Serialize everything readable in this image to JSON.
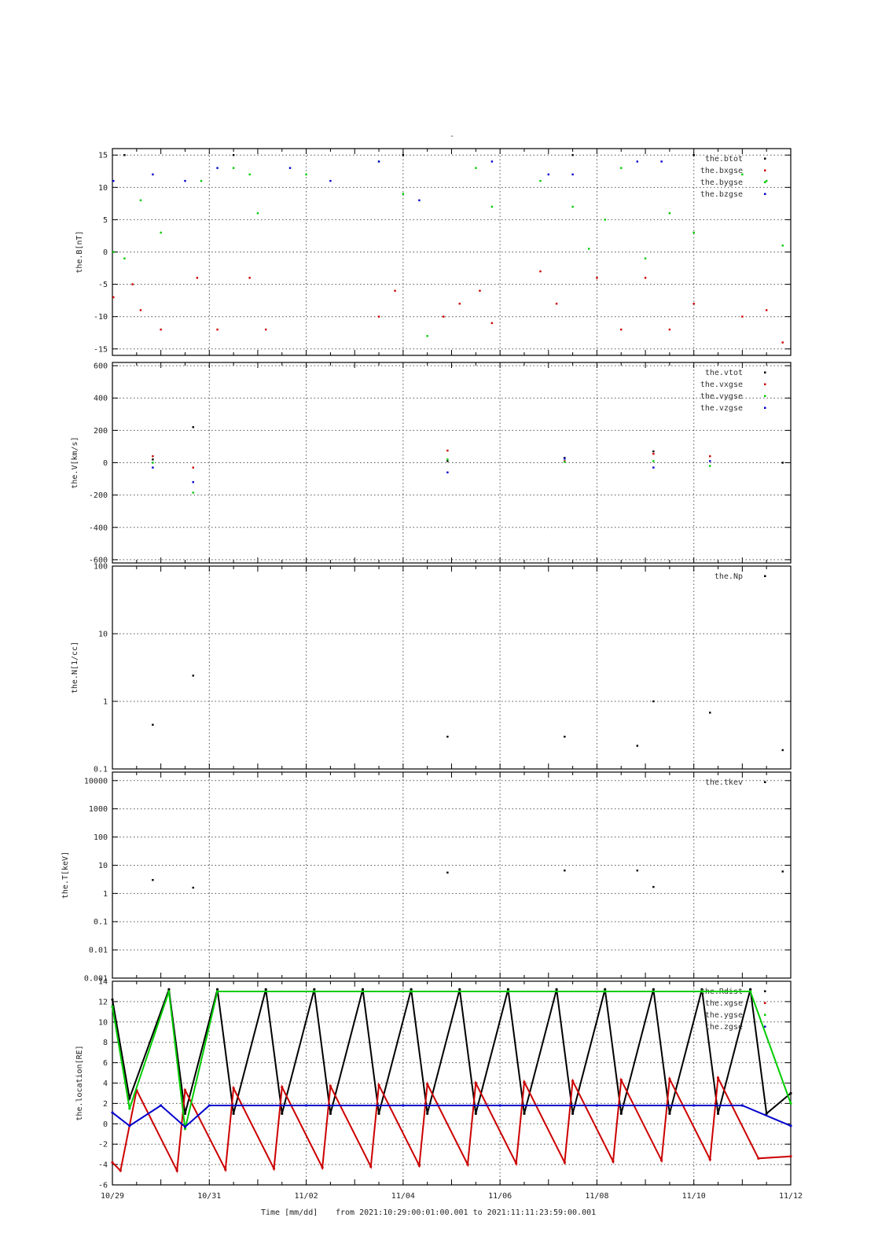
{
  "title": "-",
  "footer": {
    "xlabel": "Time [mm/dd]",
    "range_text": "from 2021:10:29:00:01:00.001  to  2021:11:11:23:59:00.001"
  },
  "x_axis": {
    "start_day": "10/29",
    "end_day": "11/12",
    "tick_labels": [
      "10/29",
      "10/31",
      "11/02",
      "11/04",
      "11/06",
      "11/08",
      "11/10",
      "11/12"
    ]
  },
  "colors": {
    "black": "#000000",
    "red": "#cc0000",
    "green": "#00cc00",
    "blue": "#0000cc",
    "grid": "#555555"
  },
  "chart_data": [
    {
      "type": "scatter",
      "ylabel": "the.B[nT]",
      "ylim": [
        -16,
        16
      ],
      "yticks": [
        15,
        10,
        5,
        0,
        -5,
        -10,
        -15
      ],
      "ytick_labels": [
        "15",
        "10",
        "5",
        "0",
        "-5",
        "-10",
        "-15"
      ],
      "legend_position": "top-right",
      "series": [
        {
          "name": "the.btot",
          "color": "#000000",
          "points": [
            [
              "10/29 06:00",
              15
            ],
            [
              "10/31 12:00",
              15
            ],
            [
              "11/04 00:00",
              15
            ],
            [
              "11/07 12:00",
              15
            ],
            [
              "11/10 00:00",
              15
            ]
          ]
        },
        {
          "name": "the.bxgse",
          "color": "#cc0000",
          "points": [
            [
              "10/29 00:30",
              -7
            ],
            [
              "10/29 10:00",
              -5
            ],
            [
              "10/29 14:00",
              -9
            ],
            [
              "10/30 00:00",
              -12
            ],
            [
              "10/30 18:00",
              -4
            ],
            [
              "10/31 04:00",
              -12
            ],
            [
              "10/31 20:00",
              -4
            ],
            [
              "11/01 04:00",
              -12
            ],
            [
              "11/03 12:00",
              -10
            ],
            [
              "11/03 20:00",
              -6
            ],
            [
              "11/04 20:00",
              -10
            ],
            [
              "11/05 04:00",
              -8
            ],
            [
              "11/05 14:00",
              -6
            ],
            [
              "11/05 20:00",
              -11
            ],
            [
              "11/06 20:00",
              -3
            ],
            [
              "11/07 04:00",
              -8
            ],
            [
              "11/08 00:00",
              -4
            ],
            [
              "11/08 12:00",
              -12
            ],
            [
              "11/09 00:00",
              -4
            ],
            [
              "11/09 12:00",
              -12
            ],
            [
              "11/10 00:00",
              -8
            ],
            [
              "11/11 00:00",
              -10
            ],
            [
              "11/11 12:00",
              -9
            ],
            [
              "11/11 20:00",
              -14
            ]
          ]
        },
        {
          "name": "the.bygse",
          "color": "#00cc00",
          "points": [
            [
              "10/29 00:30",
              0
            ],
            [
              "10/29 06:00",
              -1
            ],
            [
              "10/29 14:00",
              8
            ],
            [
              "10/30 00:00",
              3
            ],
            [
              "10/30 20:00",
              11
            ],
            [
              "10/31 12:00",
              13
            ],
            [
              "10/31 20:00",
              12
            ],
            [
              "11/01 00:00",
              6
            ],
            [
              "11/02 00:00",
              12
            ],
            [
              "11/03 12:00",
              14
            ],
            [
              "11/04 00:00",
              9
            ],
            [
              "11/04 12:00",
              -13
            ],
            [
              "11/05 12:00",
              13
            ],
            [
              "11/05 20:00",
              7
            ],
            [
              "11/06 20:00",
              11
            ],
            [
              "11/07 12:00",
              7
            ],
            [
              "11/07 20:00",
              0.5
            ],
            [
              "11/08 04:00",
              5
            ],
            [
              "11/08 12:00",
              13
            ],
            [
              "11/09 00:00",
              -1
            ],
            [
              "11/09 12:00",
              6
            ],
            [
              "11/10 00:00",
              3
            ],
            [
              "11/11 00:00",
              12
            ],
            [
              "11/11 12:00",
              11
            ],
            [
              "11/11 20:00",
              1
            ]
          ]
        },
        {
          "name": "the.bzgse",
          "color": "#0000cc",
          "points": [
            [
              "10/29 00:30",
              11
            ],
            [
              "10/29 20:00",
              12
            ],
            [
              "10/30 12:00",
              11
            ],
            [
              "10/31 04:00",
              13
            ],
            [
              "11/01 16:00",
              13
            ],
            [
              "11/02 12:00",
              11
            ],
            [
              "11/03 12:00",
              14
            ],
            [
              "11/04 08:00",
              8
            ],
            [
              "11/05 20:00",
              14
            ],
            [
              "11/07 00:00",
              12
            ],
            [
              "11/07 12:00",
              12
            ],
            [
              "11/08 20:00",
              14
            ],
            [
              "11/09 08:00",
              14
            ]
          ]
        }
      ]
    },
    {
      "type": "scatter",
      "ylabel": "the.V[km/s]",
      "ylim": [
        -620,
        620
      ],
      "yticks": [
        600,
        400,
        200,
        0,
        -200,
        -400,
        -600
      ],
      "ytick_labels": [
        "600",
        "400",
        "200",
        "0",
        "-200",
        "-400",
        "-600"
      ],
      "legend_position": "top-right",
      "series": [
        {
          "name": "the.vtot",
          "color": "#000000",
          "points": [
            [
              "10/29 20:00",
              20
            ],
            [
              "10/30 16:00",
              220
            ],
            [
              "11/04 22:00",
              10
            ],
            [
              "11/07 08:00",
              30
            ],
            [
              "11/09 04:00",
              70
            ],
            [
              "11/11 20:00",
              0
            ]
          ]
        },
        {
          "name": "the.vxgse",
          "color": "#cc0000",
          "points": [
            [
              "10/29 20:00",
              40
            ],
            [
              "10/30 16:00",
              -30
            ],
            [
              "11/04 22:00",
              75
            ],
            [
              "11/07 08:00",
              10
            ],
            [
              "11/09 04:00",
              55
            ],
            [
              "11/10 08:00",
              40
            ]
          ]
        },
        {
          "name": "the.vygse",
          "color": "#00cc00",
          "points": [
            [
              "10/29 20:00",
              0
            ],
            [
              "10/30 16:00",
              -185
            ],
            [
              "11/04 22:00",
              20
            ],
            [
              "11/07 08:00",
              5
            ],
            [
              "11/09 04:00",
              10
            ],
            [
              "11/10 08:00",
              -20
            ]
          ]
        },
        {
          "name": "the.vzgse",
          "color": "#0000cc",
          "points": [
            [
              "10/29 20:00",
              -30
            ],
            [
              "10/30 16:00",
              -120
            ],
            [
              "11/04 22:00",
              -60
            ],
            [
              "11/07 08:00",
              25
            ],
            [
              "11/09 04:00",
              -30
            ],
            [
              "11/10 08:00",
              10
            ]
          ]
        }
      ]
    },
    {
      "type": "scatter",
      "ylabel": "the.N[1/cc]",
      "yscale": "log",
      "ylim": [
        0.1,
        100
      ],
      "yticks": [
        100,
        10,
        1,
        0.1
      ],
      "ytick_labels": [
        "100",
        "10",
        "1",
        "0.1"
      ],
      "legend_position": "top-right",
      "series": [
        {
          "name": "the.Np",
          "color": "#000000",
          "points": [
            [
              "10/29 20:00",
              0.45
            ],
            [
              "10/30 16:00",
              2.4
            ],
            [
              "11/04 22:00",
              0.3
            ],
            [
              "11/07 08:00",
              0.3
            ],
            [
              "11/08 20:00",
              0.22
            ],
            [
              "11/09 04:00",
              1.0
            ],
            [
              "11/10 08:00",
              0.68
            ],
            [
              "11/11 20:00",
              0.19
            ]
          ]
        }
      ]
    },
    {
      "type": "scatter",
      "ylabel": "the.T[keV]",
      "yscale": "log",
      "ylim": [
        0.001,
        20000
      ],
      "yticks": [
        10000,
        1000,
        100,
        10,
        1,
        0.1,
        0.01,
        0.001
      ],
      "ytick_labels": [
        "10000",
        "1000",
        "100",
        "10",
        "1",
        "0.1",
        "0.01",
        "0.001"
      ],
      "legend_position": "top-right",
      "series": [
        {
          "name": "the.tkev",
          "color": "#000000",
          "points": [
            [
              "10/29 20:00",
              3
            ],
            [
              "10/30 16:00",
              1.6
            ],
            [
              "11/04 22:00",
              5.5
            ],
            [
              "11/07 08:00",
              6.5
            ],
            [
              "11/08 20:00",
              6.5
            ],
            [
              "11/09 04:00",
              1.7
            ],
            [
              "11/11 20:00",
              6
            ]
          ]
        }
      ]
    },
    {
      "type": "line",
      "ylabel": "the.location[RE]",
      "ylim": [
        -6,
        14
      ],
      "yticks": [
        14,
        12,
        10,
        8,
        6,
        4,
        2,
        0,
        -2,
        -4,
        -6
      ],
      "ytick_labels": [
        "14",
        "12",
        "10",
        "8",
        "6",
        "4",
        "2",
        "0",
        "-2",
        "-4",
        "-6"
      ],
      "legend_position": "top-right",
      "series": [
        {
          "name": "the.Rdist",
          "color": "#000000",
          "points": [
            [
              "10/29 00:00",
              12.2
            ],
            [
              "10/29 08:30",
              2.5
            ],
            [
              "10/30 04:00",
              13.2
            ],
            [
              "10/30 12:00",
              1.0
            ],
            [
              "10/31 04:00",
              13.2
            ],
            [
              "10/31 12:00",
              1.0
            ],
            [
              "11/01 04:00",
              13.2
            ],
            [
              "11/01 12:00",
              1.0
            ],
            [
              "11/02 04:00",
              13.2
            ],
            [
              "11/02 12:00",
              1.0
            ],
            [
              "11/03 04:00",
              13.2
            ],
            [
              "11/03 12:00",
              1.0
            ],
            [
              "11/04 04:00",
              13.2
            ],
            [
              "11/04 12:00",
              1.0
            ],
            [
              "11/05 04:00",
              13.2
            ],
            [
              "11/05 12:00",
              1.0
            ],
            [
              "11/06 04:00",
              13.2
            ],
            [
              "11/06 12:00",
              1.0
            ],
            [
              "11/07 04:00",
              13.2
            ],
            [
              "11/07 12:00",
              1.0
            ],
            [
              "11/08 04:00",
              13.2
            ],
            [
              "11/08 12:00",
              1.0
            ],
            [
              "11/09 04:00",
              13.2
            ],
            [
              "11/09 12:00",
              1.0
            ],
            [
              "11/10 04:00",
              13.2
            ],
            [
              "11/10 12:00",
              1.0
            ],
            [
              "11/11 04:00",
              13.2
            ],
            [
              "11/11 12:00",
              1.0
            ],
            [
              "11/12 00:00",
              3.0
            ]
          ]
        },
        {
          "name": "the.xgse",
          "color": "#cc0000",
          "points": [
            [
              "10/29 00:00",
              -3.8
            ],
            [
              "10/29 04:00",
              -4.6
            ],
            [
              "10/29 12:00",
              3.3
            ],
            [
              "10/30 08:00",
              -4.6
            ],
            [
              "10/30 12:00",
              3.3
            ],
            [
              "10/31 08:00",
              -4.5
            ],
            [
              "10/31 12:00",
              3.5
            ],
            [
              "11/01 08:00",
              -4.4
            ],
            [
              "11/01 12:00",
              3.6
            ],
            [
              "11/02 08:00",
              -4.3
            ],
            [
              "11/02 12:00",
              3.7
            ],
            [
              "11/03 08:00",
              -4.2
            ],
            [
              "11/03 12:00",
              3.8
            ],
            [
              "11/04 08:00",
              -4.1
            ],
            [
              "11/04 12:00",
              3.9
            ],
            [
              "11/05 08:00",
              -4.0
            ],
            [
              "11/05 12:00",
              4.0
            ],
            [
              "11/06 08:00",
              -3.9
            ],
            [
              "11/06 12:00",
              4.1
            ],
            [
              "11/07 08:00",
              -3.8
            ],
            [
              "11/07 12:00",
              4.2
            ],
            [
              "11/08 08:00",
              -3.7
            ],
            [
              "11/08 12:00",
              4.3
            ],
            [
              "11/09 08:00",
              -3.6
            ],
            [
              "11/09 12:00",
              4.4
            ],
            [
              "11/10 08:00",
              -3.5
            ],
            [
              "11/10 12:00",
              4.5
            ],
            [
              "11/11 08:00",
              -3.4
            ],
            [
              "11/12 00:00",
              -3.2
            ]
          ]
        },
        {
          "name": "the.ygse",
          "color": "#00cc00",
          "points": [
            [
              "10/29 00:00",
              11.5
            ],
            [
              "10/29 08:30",
              1.5
            ],
            [
              "10/30 04:00",
              13.0
            ],
            [
              "10/30 12:00",
              -0.5
            ],
            [
              "10/31 04:00",
              13.0
            ],
            [
              "11/02 04:00",
              13.0
            ],
            [
              "11/04 04:00",
              13.0
            ],
            [
              "11/06 04:00",
              13.0
            ],
            [
              "11/08 04:00",
              13.0
            ],
            [
              "11/10 04:00",
              13.0
            ],
            [
              "11/11 04:00",
              13.0
            ],
            [
              "11/12 00:00",
              2.0
            ]
          ]
        },
        {
          "name": "the.zgse",
          "color": "#0000cc",
          "points": [
            [
              "10/29 00:00",
              1.1
            ],
            [
              "10/29 08:30",
              -0.2
            ],
            [
              "10/30 00:00",
              1.8
            ],
            [
              "10/30 12:00",
              -0.3
            ],
            [
              "10/31 00:00",
              1.8
            ],
            [
              "11/02 00:00",
              1.8
            ],
            [
              "11/04 00:00",
              1.8
            ],
            [
              "11/06 00:00",
              1.8
            ],
            [
              "11/08 00:00",
              1.8
            ],
            [
              "11/10 00:00",
              1.8
            ],
            [
              "11/11 00:00",
              1.8
            ],
            [
              "11/12 00:00",
              -0.2
            ]
          ]
        }
      ]
    }
  ]
}
